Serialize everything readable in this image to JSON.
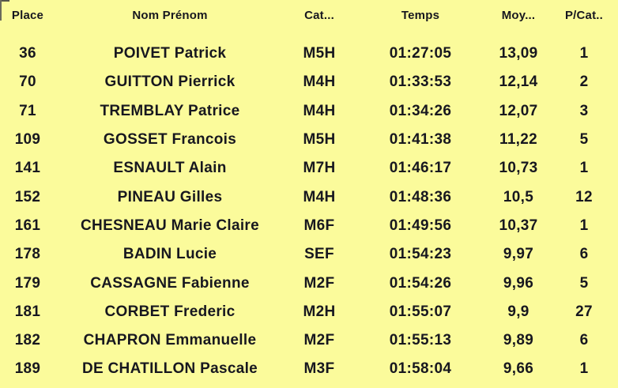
{
  "colors": {
    "background": "#fbfb9b",
    "text": "#17171f",
    "corner_artifact": "#55554a"
  },
  "table": {
    "columns": [
      {
        "key": "place",
        "label": "Place"
      },
      {
        "key": "name",
        "label": "Nom Prénom"
      },
      {
        "key": "cat",
        "label": "Cat..."
      },
      {
        "key": "temps",
        "label": "Temps"
      },
      {
        "key": "moy",
        "label": "Moy..."
      },
      {
        "key": "pcat",
        "label": "P/Cat.."
      }
    ],
    "rows": [
      [
        "36",
        "POIVET Patrick",
        "M5H",
        "01:27:05",
        "13,09",
        "1"
      ],
      [
        "70",
        "GUITTON Pierrick",
        "M4H",
        "01:33:53",
        "12,14",
        "2"
      ],
      [
        "71",
        "TREMBLAY Patrice",
        "M4H",
        "01:34:26",
        "12,07",
        "3"
      ],
      [
        "109",
        "GOSSET Francois",
        "M5H",
        "01:41:38",
        "11,22",
        "5"
      ],
      [
        "141",
        "ESNAULT Alain",
        "M7H",
        "01:46:17",
        "10,73",
        "1"
      ],
      [
        "152",
        "PINEAU Gilles",
        "M4H",
        "01:48:36",
        "10,5",
        "12"
      ],
      [
        "161",
        "CHESNEAU Marie Claire",
        "M6F",
        "01:49:56",
        "10,37",
        "1"
      ],
      [
        "178",
        "BADIN Lucie",
        "SEF",
        "01:54:23",
        "9,97",
        "6"
      ],
      [
        "179",
        "CASSAGNE Fabienne",
        "M2F",
        "01:54:26",
        "9,96",
        "5"
      ],
      [
        "181",
        "CORBET Frederic",
        "M2H",
        "01:55:07",
        "9,9",
        "27"
      ],
      [
        "182",
        "CHAPRON Emmanuelle",
        "M2F",
        "01:55:13",
        "9,89",
        "6"
      ],
      [
        "189",
        "DE CHATILLON Pascale",
        "M3F",
        "01:58:04",
        "9,66",
        "1"
      ]
    ]
  }
}
